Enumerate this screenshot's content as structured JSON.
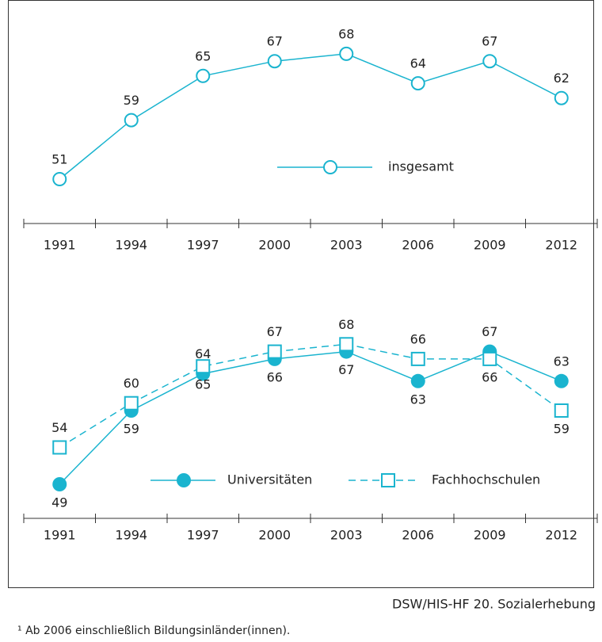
{
  "chart_data": [
    {
      "type": "line",
      "categories": [
        "1991",
        "1994",
        "1997",
        "2000",
        "2003",
        "2006",
        "2009",
        "2012"
      ],
      "series": [
        {
          "name": "insgesamt",
          "color": "#1ab4cf",
          "marker": "open-circle",
          "values": [
            51,
            59,
            65,
            67,
            68,
            64,
            67,
            62
          ]
        }
      ]
    },
    {
      "type": "line",
      "categories": [
        "1991",
        "1994",
        "1997",
        "2000",
        "2003",
        "2006",
        "2009",
        "2012"
      ],
      "series": [
        {
          "name": "Universitäten",
          "color": "#1ab4cf",
          "marker": "filled-circle",
          "values": [
            49,
            59,
            64,
            66,
            67,
            63,
            67,
            63
          ]
        },
        {
          "name": "Fachhochschulen",
          "color": "#1ab4cf",
          "marker": "open-square",
          "dashed": true,
          "values": [
            54,
            60,
            65,
            67,
            68,
            66,
            66,
            59
          ]
        }
      ]
    }
  ],
  "source": "DSW/HIS-HF 20. Sozialerhebung",
  "footnote": "¹ Ab 2006 einschließlich Bildungsinländer(innen)."
}
